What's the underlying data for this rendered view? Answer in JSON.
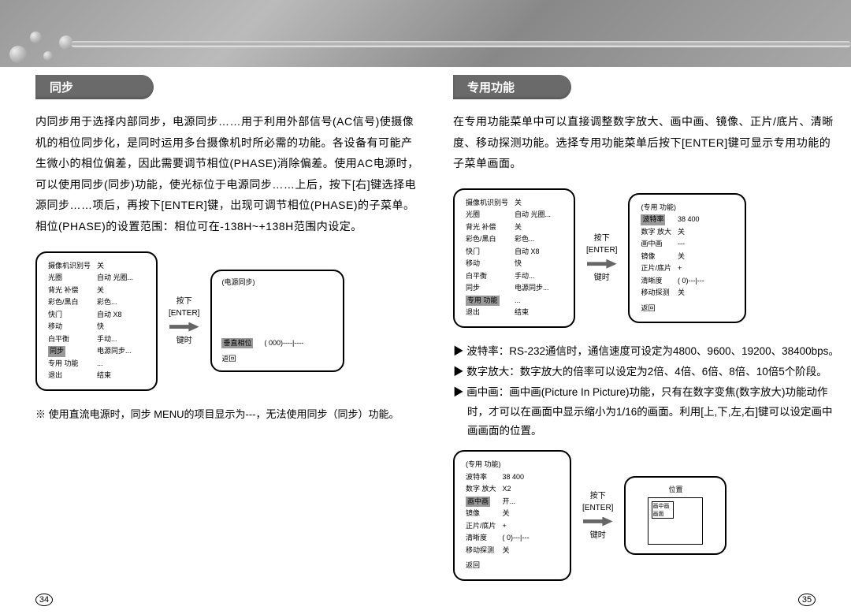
{
  "leftPage": {
    "heading": "同步",
    "body": "内同步用于选择内部同步，电源同步……用于利用外部信号(AC信号)使摄像机的相位同步化，是同时运用多台摄像机时所必需的功能。各设备有可能产生微小的相位偏差，因此需要调节相位(PHASE)消除偏差。使用AC电源时，可以使用同步(同步)功能，使光标位于电源同步……上后，按下[右]键选择电源同步……项后，再按下[ENTER]键，出现可调节相位(PHASE)的子菜单。相位(PHASE)的设置范围：相位可在-138H~+138H范围内设定。",
    "note": "※ 使用直流电源时，同步 MENU的项目显示为---，无法使用同步（同步）功能。",
    "pageNum": "34",
    "mainMenu": {
      "headerCol1": "摄像机识别号",
      "headerCol2": "关",
      "rows": [
        [
          "光圈",
          "自动 光圈..."
        ],
        [
          "背光 补偿",
          "关"
        ],
        [
          "彩色/黑白",
          "彩色..."
        ],
        [
          "快门",
          "自动 X8"
        ],
        [
          "移动",
          "快"
        ],
        [
          "白平衡",
          "手动..."
        ],
        [
          "同步",
          "电源同步..."
        ],
        [
          "专用 功能",
          "..."
        ],
        [
          "退出",
          "结束"
        ]
      ],
      "highlightRow": 6
    },
    "arrowLabel1": "按下",
    "arrowLabel2": "[ENTER]",
    "arrowLabel3": "键时",
    "subMenu": {
      "title": "(电源同步)",
      "row": [
        "垂直相位",
        "( 000)----|----"
      ],
      "back": "返回"
    }
  },
  "rightPage": {
    "heading": "专用功能",
    "body": "在专用功能菜单中可以直接调整数字放大、画中画、镜像、正片/底片、清晰度、移动探测功能。选择专用功能菜单后按下[ENTER]键可显示专用功能的子菜单画面。",
    "pageNum": "35",
    "mainMenu": {
      "headerCol1": "摄像机识别号",
      "headerCol2": "关",
      "rows": [
        [
          "光圈",
          "自动 光圈..."
        ],
        [
          "背光 补偿",
          "关"
        ],
        [
          "彩色/黑白",
          "彩色..."
        ],
        [
          "快门",
          "自动 X8"
        ],
        [
          "移动",
          "快"
        ],
        [
          "白平衡",
          "手动..."
        ],
        [
          "同步",
          "电源同步..."
        ],
        [
          "专用 功能",
          "..."
        ],
        [
          "退出",
          "结束"
        ]
      ],
      "highlightRow": 7
    },
    "arrowLabel1": "按下",
    "arrowLabel2": "[ENTER]",
    "arrowLabel3": "键时",
    "specialMenu1": {
      "title": "(专用 功能)",
      "rows": [
        [
          "波特率",
          "38 400"
        ],
        [
          "数字 放大",
          "关"
        ],
        [
          "画中画",
          "---"
        ],
        [
          "镜像",
          "关"
        ],
        [
          "正片/底片",
          "+"
        ],
        [
          "清晰度",
          "( 0)---|---"
        ],
        [
          "移动探测",
          "关"
        ]
      ],
      "highlightRow": 0,
      "back": "返回"
    },
    "bullets": [
      "▶ 波特率：RS-232通信时，通信速度可设定为4800、9600、19200、38400bps。",
      "▶ 数字放大：数字放大的倍率可以设定为2倍、4倍、6倍、8倍、10倍5个阶段。",
      "▶ 画中画：画中画(Picture In Picture)功能，只有在数字变焦(数字放大)功能动作时，才可以在画面中显示缩小为1/16的画面。利用[上,下,左,右]键可以设定画中画画面的位置。"
    ],
    "specialMenu2": {
      "title": "(专用 功能)",
      "rows": [
        [
          "波特率",
          "38 400"
        ],
        [
          "数字 放大",
          "X2"
        ],
        [
          "画中画",
          "开..."
        ],
        [
          "镜像",
          "关"
        ],
        [
          "正片/底片",
          "+"
        ],
        [
          "清晰度",
          "( 0)---|---"
        ],
        [
          "移动探测",
          "关"
        ]
      ],
      "highlightRow": 2,
      "back": "返回"
    },
    "pipBox": {
      "title": "位置",
      "innerLabel": "画中画画面"
    }
  }
}
